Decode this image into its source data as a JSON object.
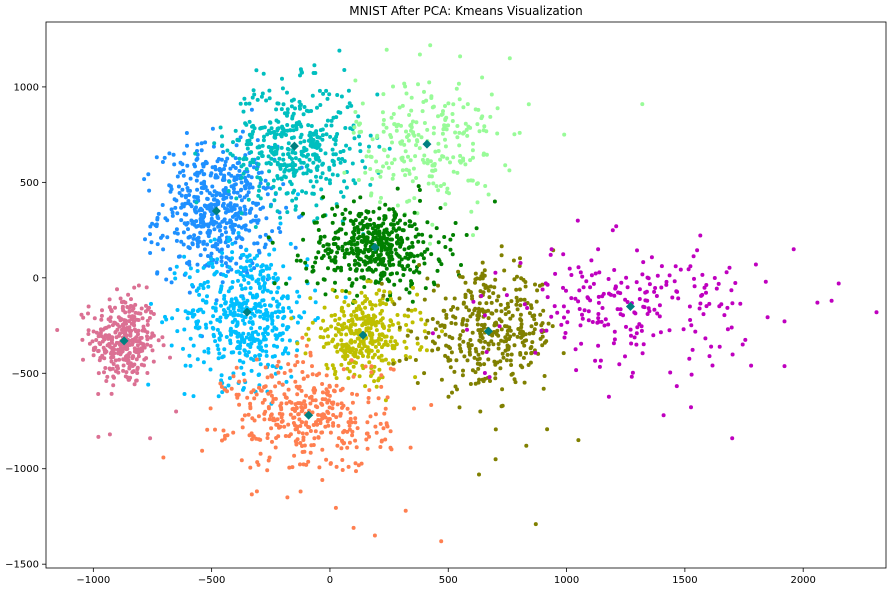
{
  "chart_data": {
    "type": "scatter",
    "title": "MNIST After PCA: Kmeans Visualization",
    "xlabel": "",
    "ylabel": "",
    "xlim": [
      -1200,
      2350
    ],
    "ylim": [
      -1520,
      1340
    ],
    "grid": false,
    "x_ticks": [
      -1000,
      -500,
      0,
      500,
      1000,
      1500,
      2000
    ],
    "x_tick_labels": [
      "−1000",
      "−500",
      "0",
      "500",
      "1000",
      "1500",
      "2000"
    ],
    "y_ticks": [
      -1500,
      -1000,
      -500,
      0,
      500,
      1000
    ],
    "y_tick_labels": [
      "−1500",
      "−1000",
      "−500",
      "0",
      "500",
      "1000"
    ],
    "clusters": [
      {
        "color": "#db7093",
        "center": [
          -870,
          -330
        ],
        "spread": [
          70,
          120
        ],
        "count": 330,
        "extra_points": [
          [
            -930,
            -820
          ],
          [
            -760,
            -840
          ],
          [
            -650,
            -700
          ],
          [
            -1020,
            -150
          ],
          [
            -900,
            -60
          ]
        ]
      },
      {
        "color": "#1e90ff",
        "center": [
          -480,
          350
        ],
        "spread": [
          120,
          170
        ],
        "count": 520,
        "extra_points": [
          [
            -760,
            130
          ],
          [
            -560,
            700
          ],
          [
            -620,
            560
          ],
          [
            -330,
            880
          ]
        ]
      },
      {
        "color": "#00bfff",
        "center": [
          -350,
          -180
        ],
        "spread": [
          130,
          180
        ],
        "count": 480,
        "extra_points": [
          [
            -610,
            -460
          ],
          [
            -200,
            -560
          ],
          [
            -470,
            -620
          ]
        ]
      },
      {
        "color": "#00bfbf",
        "center": [
          -150,
          690
        ],
        "spread": [
          140,
          160
        ],
        "count": 430,
        "extra_points": [
          [
            40,
            1190
          ],
          [
            -120,
            1080
          ],
          [
            200,
            960
          ],
          [
            -320,
            960
          ]
        ]
      },
      {
        "color": "#98fb98",
        "center": [
          410,
          700
        ],
        "spread": [
          150,
          180
        ],
        "count": 250,
        "extra_points": [
          [
            760,
            1150
          ],
          [
            1320,
            910
          ],
          [
            990,
            750
          ],
          [
            550,
            1160
          ],
          [
            380,
            1170
          ]
        ]
      },
      {
        "color": "#008000",
        "center": [
          190,
          160
        ],
        "spread": [
          140,
          110
        ],
        "count": 470,
        "extra_points": [
          [
            380,
            460
          ],
          [
            620,
            260
          ],
          [
            -140,
            90
          ]
        ]
      },
      {
        "color": "#bfbf00",
        "center": [
          140,
          -300
        ],
        "spread": [
          110,
          110
        ],
        "count": 330,
        "extra_points": [
          [
            -40,
            -310
          ],
          [
            360,
            -520
          ]
        ]
      },
      {
        "color": "#808000",
        "center": [
          670,
          -280
        ],
        "spread": [
          150,
          150
        ],
        "count": 380,
        "extra_points": [
          [
            870,
            -1290
          ],
          [
            630,
            -1030
          ],
          [
            700,
            -950
          ],
          [
            1050,
            -850
          ],
          [
            830,
            -880
          ]
        ]
      },
      {
        "color": "#bf00bf",
        "center": [
          1270,
          -150
        ],
        "spread": [
          250,
          150
        ],
        "count": 230,
        "extra_points": [
          [
            2310,
            -180
          ],
          [
            2150,
            -30
          ],
          [
            2120,
            -120
          ],
          [
            2060,
            -130
          ],
          [
            1960,
            150
          ],
          [
            1700,
            -840
          ],
          [
            1800,
            70
          ],
          [
            1410,
            -720
          ],
          [
            1780,
            -460
          ]
        ]
      },
      {
        "color": "#ff7f50",
        "center": [
          -90,
          -720
        ],
        "spread": [
          170,
          150
        ],
        "count": 380,
        "extra_points": [
          [
            470,
            -1380
          ],
          [
            190,
            -1350
          ],
          [
            100,
            -1310
          ],
          [
            -180,
            -1150
          ],
          [
            320,
            -1220
          ],
          [
            -450,
            -800
          ]
        ]
      }
    ],
    "centroids": {
      "color": "#008080",
      "points": [
        [
          -870,
          -330
        ],
        [
          -480,
          350
        ],
        [
          -350,
          -180
        ],
        [
          -150,
          690
        ],
        [
          410,
          700
        ],
        [
          190,
          160
        ],
        [
          140,
          -300
        ],
        [
          670,
          -280
        ],
        [
          1270,
          -150
        ],
        [
          -90,
          -720
        ]
      ]
    }
  }
}
